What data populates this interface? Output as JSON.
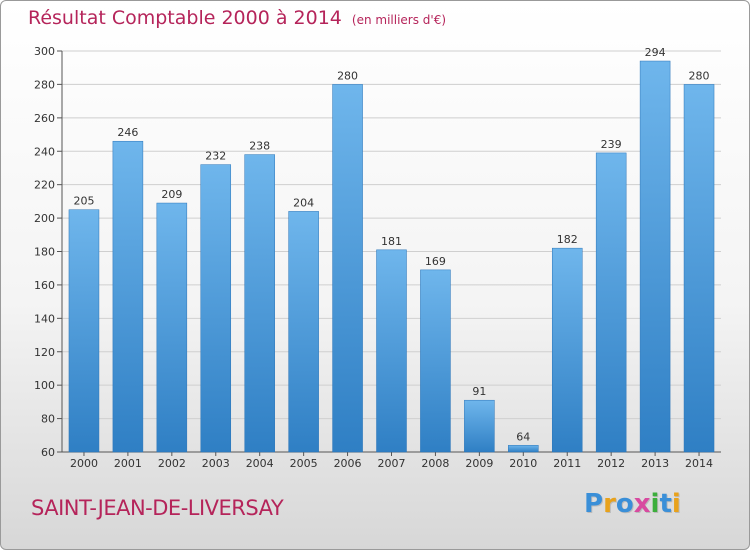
{
  "title": "Résultat Comptable 2000 à 2014",
  "unit_note": "(en milliers d'€)",
  "commune": "SAINT-JEAN-DE-LIVERSAY",
  "brand": {
    "letters": [
      "P",
      "r",
      "o",
      "x",
      "i",
      "t",
      "i"
    ],
    "colors": [
      "#3a8fd8",
      "#e8a21c",
      "#3a8fd8",
      "#d84aa0",
      "#3cae3c",
      "#3a8fd8",
      "#e8a21c"
    ]
  },
  "colors": {
    "bar": "#3d93d6",
    "bar_light": "#6fb6ec",
    "title": "#b5245a",
    "grid": "#cccccc"
  },
  "chart_data": {
    "type": "bar",
    "title": "Résultat Comptable 2000 à 2014",
    "xlabel": "",
    "ylabel": "(en milliers d'€)",
    "categories": [
      "2000",
      "2001",
      "2002",
      "2003",
      "2004",
      "2005",
      "2006",
      "2007",
      "2008",
      "2009",
      "2010",
      "2011",
      "2012",
      "2013",
      "2014"
    ],
    "values": [
      205,
      246,
      209,
      232,
      238,
      204,
      280,
      181,
      169,
      91,
      64,
      182,
      239,
      294,
      280
    ],
    "ylim": [
      60,
      300
    ],
    "yticks": [
      60,
      80,
      100,
      120,
      140,
      160,
      180,
      200,
      220,
      240,
      260,
      280,
      300
    ],
    "grid": true
  }
}
